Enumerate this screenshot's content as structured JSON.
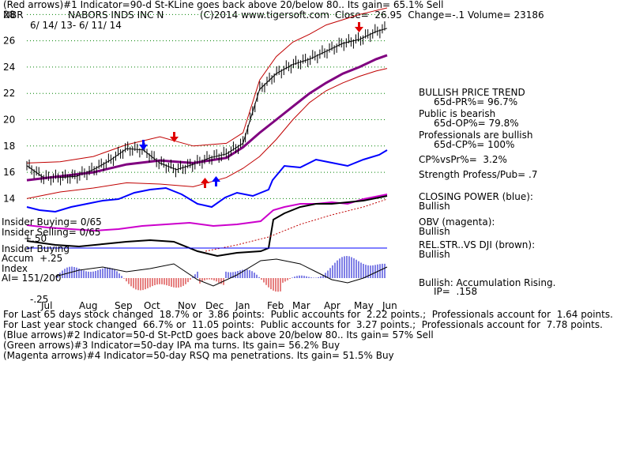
{
  "header": {
    "line1": "(Red arrows)#1 Indicator=90-d St-KLine goes back above 20/below 80.. Its gain= 65.1% Sell",
    "ticker": "NBR",
    "company": "NABORS INDS INC N",
    "copyright": "(C)2014 www.tigersoft.com",
    "close": "Close=  26.95  Change=-.1 Volume= 23186",
    "date_range": "6/ 14/ 13- 6/ 11/ 14"
  },
  "right_panel": {
    "trend_title": "BULLISH PRICE TREND",
    "pr": "65d-PR%= 96.7%",
    "public_title": "Public is bearish",
    "op": "65d-OP%= 79.8%",
    "prof_title": "Professionals are bullish",
    "cp": "65d-CP%= 100%",
    "cpvspr": "CP%vsPr%=  3.2%",
    "strength": "Strength Profess/Pub= .7",
    "closing_power_title": "CLOSING POWER (blue):",
    "closing_power_val": "Bullish",
    "obv_title": "OBV (magenta):",
    "obv_val": "Bullish",
    "relstr_title": "REL.STR..VS DJI (brown):",
    "relstr_val": "Bullish",
    "accum": "Bullish: Accumulation Rising.",
    "ip": "IP=  .158"
  },
  "left_labels": {
    "insider_buying": "Insider Buying= 0/65",
    "insider_selling": "Insider Selling= 0/65",
    "plus50": "+.50",
    "insider_buying2": "Insider Buying",
    "accum": "Accum  +.25",
    "index": "Index",
    "ai": "AI= 151/200",
    "minus25": "-.25"
  },
  "footer": {
    "line1": "For Last 65 days stock changed  18.7% or  3.86 points:  Public accounts for  2.22 points.;  Professionals account for  1.64 points.",
    "line2": "For Last year stock changed  66.7% or  11.05 points:  Public accounts for  3.27 points.;  Professionals account for  7.78 points.",
    "line3": "(Blue arrows)#2 Indicator=50-d St-PctD goes back above 20/below 80.. Its gain= 57% Sell",
    "line4": "(Green arrows)#3 Indicator=50-day IPA ma turns. Its gain= 56.2% Buy",
    "line5": "(Magenta arrows)#4 Indicator=50-day RSQ ma penetrations. Its gain= 51.5% Buy"
  },
  "chart_data": {
    "type": "line",
    "title": "NABORS INDS INC N",
    "y_ticks": [
      14,
      16,
      18,
      20,
      22,
      24,
      26,
      28
    ],
    "ylim": [
      13,
      28.5
    ],
    "x_ticks": [
      "Jul",
      "Aug",
      "Sep",
      "Oct",
      "Nov",
      "Dec",
      "Jan",
      "Feb",
      "Mar",
      "Apr",
      "May",
      "Jun"
    ],
    "series": [
      {
        "name": "Close",
        "color": "#000000",
        "x": [
          0,
          3,
          6,
          9,
          12,
          15,
          18,
          21,
          24,
          27,
          30,
          33,
          36,
          39,
          42,
          45,
          48,
          51,
          54,
          57,
          60,
          63,
          65
        ],
        "values": [
          16.5,
          15.6,
          15.6,
          15.7,
          16.2,
          16.9,
          17.8,
          17.7,
          16.7,
          16.2,
          16.6,
          17.1,
          17.4,
          18.2,
          22.3,
          23.5,
          24.2,
          24.6,
          25.2,
          25.8,
          26.1,
          26.7,
          26.95
        ]
      },
      {
        "name": "",
        "color": "#800080",
        "x": [
          0,
          6,
          12,
          18,
          24,
          30,
          36,
          39,
          42,
          45,
          48,
          51,
          54,
          57,
          60,
          63,
          65
        ],
        "values": [
          15.4,
          15.7,
          16.0,
          16.6,
          16.9,
          16.7,
          17.1,
          17.9,
          19.0,
          20.0,
          21.0,
          22.0,
          22.8,
          23.5,
          24.0,
          24.6,
          24.9
        ]
      },
      {
        "name": "",
        "color": "#c00000",
        "x": [
          0,
          6,
          12,
          18,
          24,
          30,
          36,
          39,
          42,
          45,
          48,
          51,
          54,
          57,
          60,
          63,
          65
        ],
        "values": [
          16.7,
          16.8,
          17.2,
          18.1,
          18.7,
          18.0,
          18.2,
          19.0,
          23.0,
          24.8,
          25.9,
          26.5,
          27.2,
          27.6,
          28.0,
          28.3,
          28.5
        ]
      },
      {
        "name": "",
        "color": "#c00000",
        "x": [
          0,
          6,
          12,
          18,
          24,
          30,
          36,
          39,
          42,
          45,
          48,
          51,
          54,
          57,
          60,
          63,
          65
        ],
        "values": [
          14.0,
          14.5,
          14.8,
          15.2,
          15.1,
          14.9,
          15.6,
          16.3,
          17.2,
          18.5,
          20.0,
          21.3,
          22.2,
          22.8,
          23.3,
          23.7,
          23.9
        ]
      }
    ],
    "grid": true
  }
}
